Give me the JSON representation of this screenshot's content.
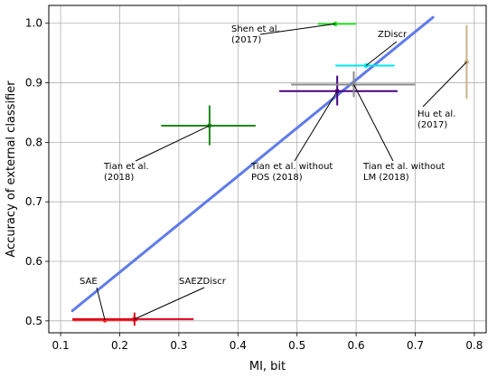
{
  "chart_data": {
    "type": "scatter",
    "title": "",
    "xlabel": "MI, bit",
    "ylabel": "Accuracy of external classifier",
    "xlim": [
      0.08,
      0.82
    ],
    "ylim": [
      0.48,
      1.03
    ],
    "xticks": [
      "0.1",
      "0.2",
      "0.3",
      "0.4",
      "0.5",
      "0.6",
      "0.7",
      "0.8"
    ],
    "yticks": [
      "0.5",
      "0.6",
      "0.7",
      "0.8",
      "0.9",
      "1.0"
    ],
    "grid": true,
    "points": [
      {
        "label": "SAE",
        "x": 0.175,
        "y": 0.501,
        "xerr": [
          0.12,
          0.23
        ],
        "yerr": null,
        "color": "#ff2a2a"
      },
      {
        "label": "SAEZDiscr",
        "x": 0.225,
        "y": 0.503,
        "xerr": [
          0.12,
          0.325
        ],
        "yerr": [
          0.492,
          0.514
        ],
        "color": "#e0001a"
      },
      {
        "label": "Tian et al.\n(2018)",
        "x": 0.352,
        "y": 0.828,
        "xerr": [
          0.27,
          0.43
        ],
        "yerr": [
          0.795,
          0.862
        ],
        "color": "#1a8a1a"
      },
      {
        "label": "Tian et al. without\nPOS (2018)",
        "x": 0.568,
        "y": 0.886,
        "xerr": [
          0.47,
          0.67
        ],
        "yerr": [
          0.862,
          0.912
        ],
        "color": "#4b0082"
      },
      {
        "label": "Tian et al. without\nLM (2018)",
        "x": 0.596,
        "y": 0.897,
        "xerr": [
          0.49,
          0.7
        ],
        "yerr": [
          0.876,
          0.919
        ],
        "color": "#8c8c8c"
      },
      {
        "label": "Shen et al.\n(2017)",
        "x": 0.565,
        "y": 0.999,
        "xerr": [
          0.535,
          0.6
        ],
        "yerr": null,
        "color": "#22dd22"
      },
      {
        "label": "ZDiscr",
        "x": 0.617,
        "y": 0.929,
        "xerr": [
          0.565,
          0.665
        ],
        "yerr": null,
        "color": "#00e5ee"
      },
      {
        "label": "Hu et al.\n(2017)",
        "x": 0.787,
        "y": 0.935,
        "xerr": null,
        "yerr": [
          0.873,
          0.997
        ],
        "color": "#c8b48a"
      }
    ],
    "fit_line": {
      "x": [
        0.12,
        0.73
      ],
      "y": [
        0.517,
        1.01
      ],
      "color": "#5f7be8"
    }
  }
}
